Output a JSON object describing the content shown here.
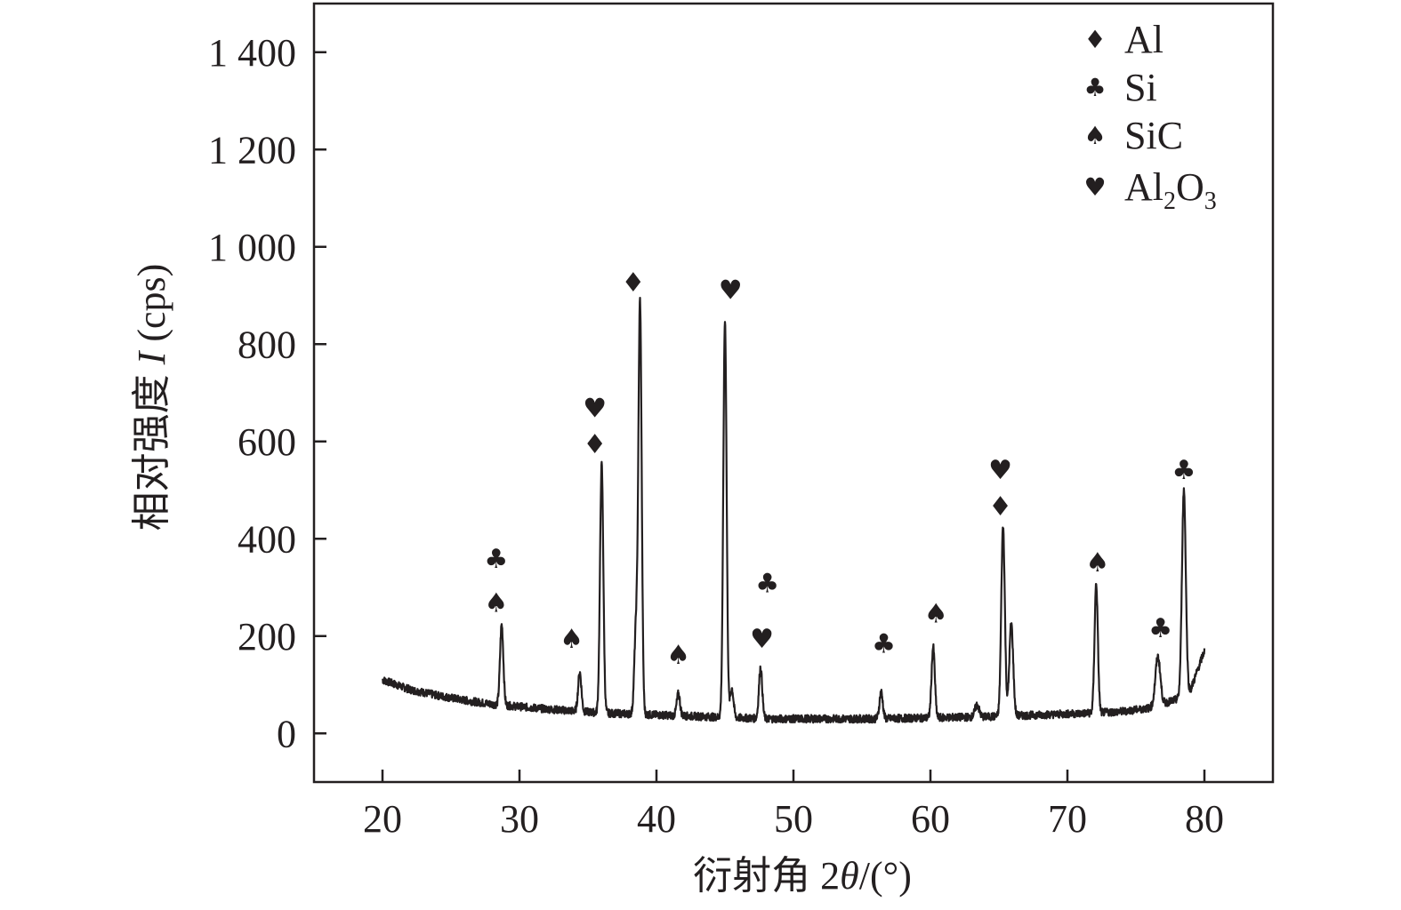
{
  "chart_data": {
    "type": "line",
    "title": "",
    "xlabel": "衍射角 2θ/(°)",
    "xlabel_parts": {
      "prefix": "衍射角 2",
      "theta": "θ",
      "suffix": "/(°)"
    },
    "ylabel": "相对强度 I (cps)",
    "ylabel_parts": {
      "prefix": "相对强度 ",
      "italic": "I",
      "suffix": " (cps)"
    },
    "xlim": [
      15,
      85
    ],
    "ylim": [
      -100,
      1500
    ],
    "x_ticks": [
      20,
      30,
      40,
      50,
      60,
      70,
      80
    ],
    "x_tick_labels": [
      "20",
      "30",
      "40",
      "50",
      "60",
      "70",
      "80"
    ],
    "y_ticks": [
      0,
      200,
      400,
      600,
      800,
      1000,
      1200,
      1400
    ],
    "y_tick_labels": [
      "0",
      "200",
      "400",
      "600",
      "800",
      "1 000",
      "1 200",
      "1 400"
    ],
    "grid": false,
    "legend_position": "top-right",
    "line_color": "#231f20",
    "legend": [
      {
        "marker": "♦",
        "name": "Al"
      },
      {
        "marker": "♣",
        "name": "Si"
      },
      {
        "marker": "♠",
        "name": "SiC"
      },
      {
        "marker": "♥",
        "name": "Al₂O₃",
        "name_parts": {
          "a": "Al",
          "s1": "2",
          "b": "O",
          "s2": "3"
        }
      }
    ],
    "baseline": [
      [
        20,
        110
      ],
      [
        22,
        90
      ],
      [
        24,
        78
      ],
      [
        26,
        68
      ],
      [
        28,
        60
      ],
      [
        30,
        55
      ],
      [
        32,
        50
      ],
      [
        34,
        46
      ],
      [
        36,
        42
      ],
      [
        38,
        40
      ],
      [
        40,
        38
      ],
      [
        42,
        36
      ],
      [
        44,
        34
      ],
      [
        46,
        32
      ],
      [
        48,
        30
      ],
      [
        50,
        30
      ],
      [
        52,
        30
      ],
      [
        54,
        30
      ],
      [
        56,
        30
      ],
      [
        58,
        31
      ],
      [
        60,
        32
      ],
      [
        62,
        33
      ],
      [
        64,
        34
      ],
      [
        66,
        36
      ],
      [
        68,
        38
      ],
      [
        70,
        40
      ],
      [
        72,
        42
      ],
      [
        74,
        45
      ],
      [
        76,
        52
      ],
      [
        78,
        70
      ],
      [
        79,
        90
      ],
      [
        80,
        170
      ]
    ],
    "peaks": [
      {
        "x": 28.7,
        "height": 165,
        "width": 0.12
      },
      {
        "x": 34.4,
        "height": 80,
        "width": 0.12
      },
      {
        "x": 36.0,
        "height": 510,
        "width": 0.12
      },
      {
        "x": 38.5,
        "height": 170,
        "width": 0.12
      },
      {
        "x": 38.8,
        "height": 845,
        "width": 0.12
      },
      {
        "x": 41.6,
        "height": 45,
        "width": 0.12
      },
      {
        "x": 45.0,
        "height": 815,
        "width": 0.12
      },
      {
        "x": 45.5,
        "height": 60,
        "width": 0.12
      },
      {
        "x": 47.6,
        "height": 105,
        "width": 0.12
      },
      {
        "x": 56.4,
        "height": 55,
        "width": 0.12
      },
      {
        "x": 60.2,
        "height": 145,
        "width": 0.12
      },
      {
        "x": 63.4,
        "height": 25,
        "width": 0.15
      },
      {
        "x": 65.3,
        "height": 390,
        "width": 0.13
      },
      {
        "x": 65.9,
        "height": 190,
        "width": 0.14
      },
      {
        "x": 72.1,
        "height": 265,
        "width": 0.12
      },
      {
        "x": 76.6,
        "height": 100,
        "width": 0.18
      },
      {
        "x": 78.5,
        "height": 420,
        "width": 0.14
      }
    ],
    "annotations": [
      {
        "marker": "♣",
        "x": 28.3,
        "y": 362
      },
      {
        "marker": "♠",
        "x": 28.3,
        "y": 272
      },
      {
        "marker": "♠",
        "x": 33.8,
        "y": 198
      },
      {
        "marker": "♥",
        "x": 35.5,
        "y": 672
      },
      {
        "marker": "♦",
        "x": 35.5,
        "y": 598
      },
      {
        "marker": "♦",
        "x": 38.3,
        "y": 930
      },
      {
        "marker": "♠",
        "x": 41.6,
        "y": 165
      },
      {
        "marker": "♥",
        "x": 45.4,
        "y": 915
      },
      {
        "marker": "♣",
        "x": 48.1,
        "y": 312
      },
      {
        "marker": "♥",
        "x": 47.7,
        "y": 198
      },
      {
        "marker": "♣",
        "x": 56.6,
        "y": 188
      },
      {
        "marker": "♠",
        "x": 60.4,
        "y": 250
      },
      {
        "marker": "♥",
        "x": 65.1,
        "y": 545
      },
      {
        "marker": "♦",
        "x": 65.1,
        "y": 470
      },
      {
        "marker": "♠",
        "x": 72.2,
        "y": 355
      },
      {
        "marker": "♣",
        "x": 76.8,
        "y": 220
      },
      {
        "marker": "♣",
        "x": 78.5,
        "y": 545
      }
    ]
  }
}
